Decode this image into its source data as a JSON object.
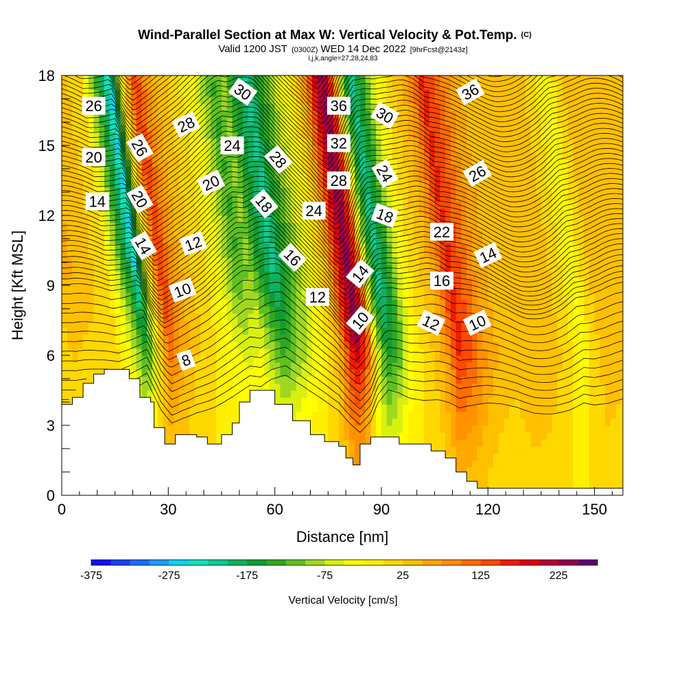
{
  "header": {
    "title": "Wind-Parallel Section at Max W: Vertical Velocity & Pot.Temp.",
    "title_mark": "(C)",
    "subtitle_valid": "Valid 1200 JST",
    "subtitle_zulu": "(0300Z)",
    "subtitle_date": "WED 14 Dec 2022",
    "subtitle_run": "[9hrFcst@2143z]",
    "subtitle_ijk": "i,j,k,angle=27,28,24,83"
  },
  "chart_data": {
    "type": "heatmap",
    "title": "Wind-Parallel Section at Max W: Vertical Velocity & Pot.Temp.",
    "xlabel": "Distance [nm]",
    "ylabel": "Height [Kft MSL]",
    "xlim": [
      0,
      158
    ],
    "ylim": [
      0,
      18
    ],
    "x_ticks": [
      0,
      30,
      60,
      90,
      120,
      150
    ],
    "y_ticks": [
      0,
      3,
      6,
      9,
      12,
      15,
      18
    ],
    "grid": false,
    "colorbar": {
      "title": "Vertical Velocity [cm/s]",
      "tick_values": [
        -375,
        -275,
        -175,
        -75,
        25,
        125,
        225
      ],
      "tick_labels": [
        "-375",
        "-275",
        "-175",
        "-75",
        "25",
        "125",
        "225"
      ],
      "levels": [
        -375,
        -350,
        -325,
        -300,
        -275,
        -250,
        -225,
        -200,
        -175,
        -150,
        -125,
        -100,
        -75,
        -50,
        -25,
        0,
        25,
        50,
        75,
        100,
        125,
        150,
        175,
        200,
        225,
        250
      ],
      "colors": [
        "#1010f0",
        "#1c40f4",
        "#1c6cf8",
        "#1c9cf8",
        "#10d0f0",
        "#10e0c0",
        "#10c890",
        "#10b060",
        "#109c30",
        "#30a820",
        "#60c020",
        "#a0d820",
        "#d8f010",
        "#ffff00",
        "#fff000",
        "#ffd800",
        "#ffc000",
        "#ffa800",
        "#ff9000",
        "#ff6c00",
        "#ff4800",
        "#f01c00",
        "#d80010",
        "#b80030",
        "#900050",
        "#600070"
      ]
    },
    "velocity_columns": [
      {
        "x": 0,
        "w": 20
      },
      {
        "x": 4,
        "w": 55
      },
      {
        "x": 10,
        "w": 40
      },
      {
        "x": 16,
        "w": 0
      },
      {
        "x": 19,
        "w": -90
      },
      {
        "x": 22,
        "w": -190
      },
      {
        "x": 24,
        "w": -260
      },
      {
        "x": 26,
        "w": -120
      },
      {
        "x": 28,
        "w": 25
      },
      {
        "x": 31,
        "w": 150
      },
      {
        "x": 34,
        "w": 90
      },
      {
        "x": 38,
        "w": 35
      },
      {
        "x": 43,
        "w": 10
      },
      {
        "x": 48,
        "w": -50
      },
      {
        "x": 53,
        "w": -130
      },
      {
        "x": 56,
        "w": -90
      },
      {
        "x": 59,
        "w": -160
      },
      {
        "x": 63,
        "w": -210
      },
      {
        "x": 66,
        "w": -150
      },
      {
        "x": 70,
        "w": -80
      },
      {
        "x": 74,
        "w": -20
      },
      {
        "x": 78,
        "w": 50
      },
      {
        "x": 81,
        "w": 160
      },
      {
        "x": 84,
        "w": 250
      },
      {
        "x": 87,
        "w": 120
      },
      {
        "x": 89,
        "w": -80
      },
      {
        "x": 92,
        "w": -210
      },
      {
        "x": 95,
        "w": -150
      },
      {
        "x": 98,
        "w": -60
      },
      {
        "x": 102,
        "w": 10
      },
      {
        "x": 106,
        "w": 40
      },
      {
        "x": 109,
        "w": 90
      },
      {
        "x": 112,
        "w": 160
      },
      {
        "x": 116,
        "w": 120
      },
      {
        "x": 120,
        "w": 70
      },
      {
        "x": 124,
        "w": 40
      },
      {
        "x": 128,
        "w": 30
      },
      {
        "x": 133,
        "w": 50
      },
      {
        "x": 138,
        "w": 40
      },
      {
        "x": 143,
        "w": 10
      },
      {
        "x": 147,
        "w": -40
      },
      {
        "x": 150,
        "w": 15
      },
      {
        "x": 154,
        "w": 40
      },
      {
        "x": 158,
        "w": 30
      }
    ],
    "terrain_heights_kft": [
      {
        "x": 0,
        "z": 3.9
      },
      {
        "x": 3,
        "z": 4.2
      },
      {
        "x": 6,
        "z": 4.8
      },
      {
        "x": 9,
        "z": 5.2
      },
      {
        "x": 12,
        "z": 5.4
      },
      {
        "x": 16,
        "z": 5.4
      },
      {
        "x": 19,
        "z": 5.0
      },
      {
        "x": 22,
        "z": 4.2
      },
      {
        "x": 25,
        "z": 4.0
      },
      {
        "x": 26,
        "z": 2.9
      },
      {
        "x": 29,
        "z": 2.2
      },
      {
        "x": 32,
        "z": 2.6
      },
      {
        "x": 38,
        "z": 2.5
      },
      {
        "x": 41,
        "z": 2.2
      },
      {
        "x": 45,
        "z": 2.6
      },
      {
        "x": 48,
        "z": 3.1
      },
      {
        "x": 50,
        "z": 4.0
      },
      {
        "x": 53,
        "z": 4.5
      },
      {
        "x": 58,
        "z": 4.5
      },
      {
        "x": 60,
        "z": 3.9
      },
      {
        "x": 65,
        "z": 3.2
      },
      {
        "x": 70,
        "z": 2.6
      },
      {
        "x": 74,
        "z": 2.3
      },
      {
        "x": 78,
        "z": 2.1
      },
      {
        "x": 80,
        "z": 1.6
      },
      {
        "x": 82,
        "z": 1.3
      },
      {
        "x": 84,
        "z": 2.2
      },
      {
        "x": 87,
        "z": 2.5
      },
      {
        "x": 92,
        "z": 2.5
      },
      {
        "x": 95,
        "z": 2.2
      },
      {
        "x": 100,
        "z": 2.2
      },
      {
        "x": 104,
        "z": 1.9
      },
      {
        "x": 108,
        "z": 1.6
      },
      {
        "x": 111,
        "z": 1.0
      },
      {
        "x": 114,
        "z": 0.6
      },
      {
        "x": 117,
        "z": 0.3
      },
      {
        "x": 121,
        "z": 0.3
      },
      {
        "x": 158,
        "z": 0.3
      }
    ],
    "theta_contours": {
      "levels": [
        8,
        10,
        12,
        14,
        16,
        18,
        20,
        22,
        24,
        26,
        28,
        30,
        32,
        34,
        36
      ],
      "labels": [
        {
          "text": "26",
          "x": 9,
          "z": 16.7,
          "angle": 0
        },
        {
          "text": "20",
          "x": 9,
          "z": 14.5,
          "angle": 0
        },
        {
          "text": "14",
          "x": 10,
          "z": 12.6,
          "angle": 0
        },
        {
          "text": "26",
          "x": 22,
          "z": 14.9,
          "angle": 60
        },
        {
          "text": "20",
          "x": 22,
          "z": 12.7,
          "angle": 60
        },
        {
          "text": "14",
          "x": 23,
          "z": 10.7,
          "angle": 60
        },
        {
          "text": "28",
          "x": 35,
          "z": 15.9,
          "angle": -25
        },
        {
          "text": "20",
          "x": 42,
          "z": 13.4,
          "angle": -25
        },
        {
          "text": "12",
          "x": 37,
          "z": 10.8,
          "angle": -20
        },
        {
          "text": "10",
          "x": 34,
          "z": 8.8,
          "angle": -20
        },
        {
          "text": "8",
          "x": 35,
          "z": 5.8,
          "angle": -20
        },
        {
          "text": "30",
          "x": 51,
          "z": 17.3,
          "angle": 35
        },
        {
          "text": "24",
          "x": 48,
          "z": 15.0,
          "angle": 0
        },
        {
          "text": "28",
          "x": 61,
          "z": 14.4,
          "angle": 50
        },
        {
          "text": "18",
          "x": 57,
          "z": 12.5,
          "angle": 50
        },
        {
          "text": "24",
          "x": 71,
          "z": 12.2,
          "angle": 0
        },
        {
          "text": "16",
          "x": 65,
          "z": 10.2,
          "angle": 45
        },
        {
          "text": "12",
          "x": 72,
          "z": 8.5,
          "angle": 0
        },
        {
          "text": "36",
          "x": 78,
          "z": 16.7,
          "angle": 0
        },
        {
          "text": "32",
          "x": 78,
          "z": 15.1,
          "angle": 0
        },
        {
          "text": "28",
          "x": 78,
          "z": 13.5,
          "angle": 0
        },
        {
          "text": "14",
          "x": 84,
          "z": 9.5,
          "angle": -50
        },
        {
          "text": "10",
          "x": 84,
          "z": 7.5,
          "angle": -50
        },
        {
          "text": "30",
          "x": 91,
          "z": 16.3,
          "angle": 30
        },
        {
          "text": "24",
          "x": 91,
          "z": 13.8,
          "angle": 60
        },
        {
          "text": "18",
          "x": 91,
          "z": 12.0,
          "angle": 20
        },
        {
          "text": "22",
          "x": 107,
          "z": 11.3,
          "angle": 0
        },
        {
          "text": "16",
          "x": 107,
          "z": 9.2,
          "angle": 0
        },
        {
          "text": "12",
          "x": 104,
          "z": 7.4,
          "angle": 25
        },
        {
          "text": "36",
          "x": 115,
          "z": 17.3,
          "angle": -30
        },
        {
          "text": "26",
          "x": 117,
          "z": 13.8,
          "angle": -30
        },
        {
          "text": "14",
          "x": 120,
          "z": 10.3,
          "angle": -25
        },
        {
          "text": "10",
          "x": 117,
          "z": 7.4,
          "angle": -25
        }
      ]
    }
  },
  "colorbar": {
    "title": "Vertical Velocity [cm/s]"
  },
  "axes": {
    "xlabel": "Distance [nm]",
    "ylabel": "Height [Kft MSL]"
  }
}
